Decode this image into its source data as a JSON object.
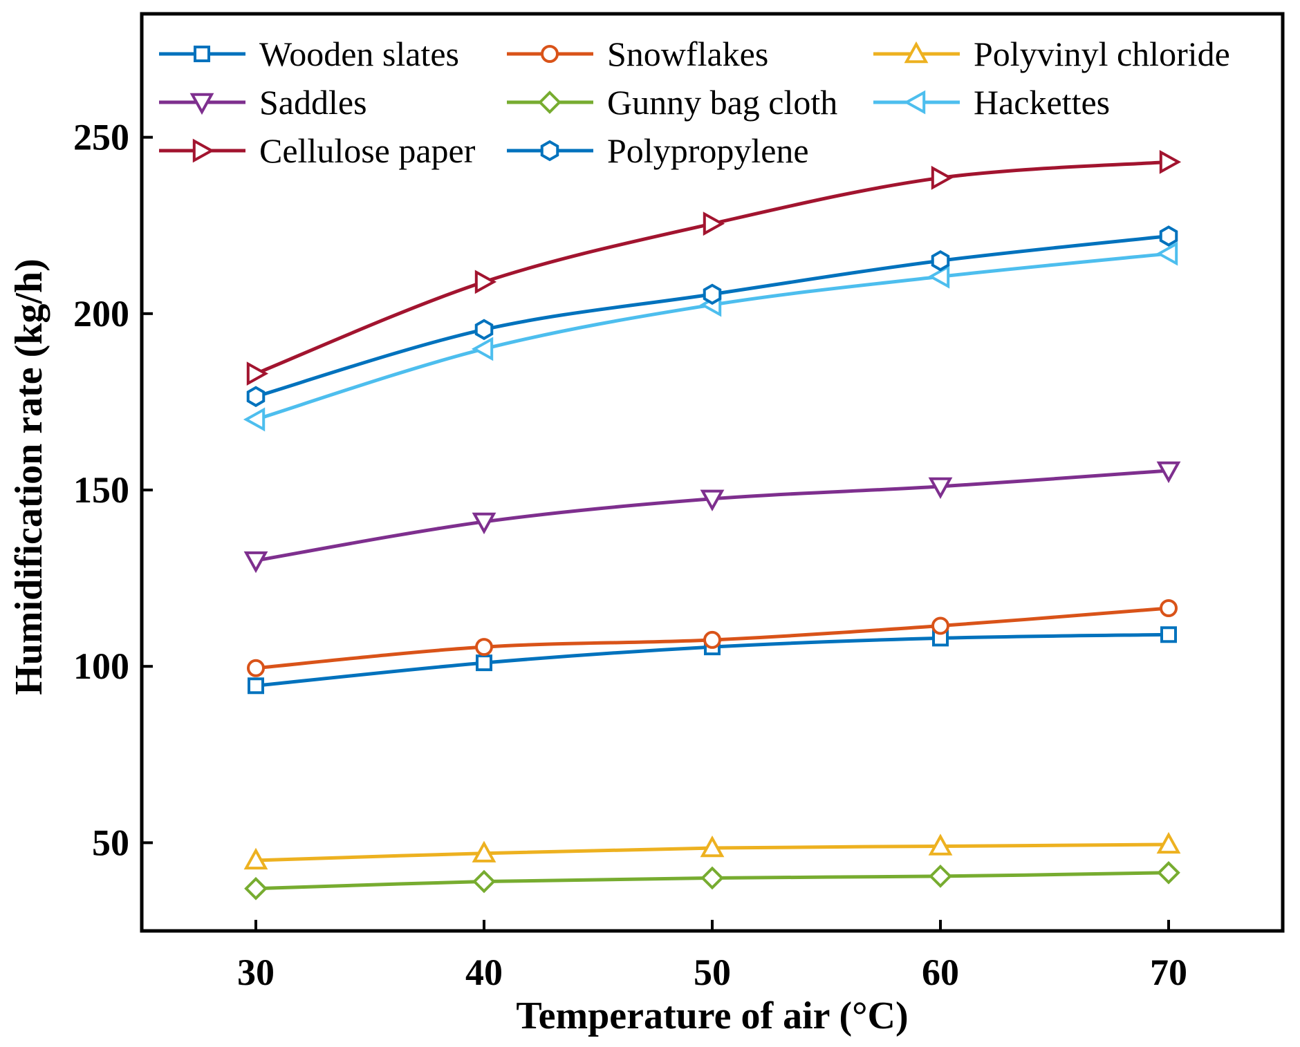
{
  "chart_data": {
    "type": "line",
    "title": "",
    "xlabel": "Temperature of air (°C)",
    "ylabel": "Humidification rate (kg/h)",
    "x": [
      30,
      40,
      50,
      60,
      70
    ],
    "xlim": [
      25,
      75
    ],
    "ylim": [
      25,
      285
    ],
    "xticks": [
      30,
      40,
      50,
      60,
      70
    ],
    "yticks": [
      50,
      100,
      150,
      200,
      250
    ],
    "grid": false,
    "legend_position": "top, 3 columns",
    "series": [
      {
        "name": "Wooden slates",
        "marker": "square",
        "color": "#0072BD",
        "values": [
          94.5,
          101,
          105.5,
          108,
          109
        ]
      },
      {
        "name": "Snowflakes",
        "marker": "circle",
        "color": "#D95319",
        "values": [
          99.5,
          105.5,
          107.5,
          111.5,
          116.5
        ]
      },
      {
        "name": "Polyvinyl chloride",
        "marker": "triangle-up",
        "color": "#EDB120",
        "values": [
          45,
          47,
          48.5,
          49,
          49.5
        ]
      },
      {
        "name": "Saddles",
        "marker": "triangle-down",
        "color": "#7E2F8E",
        "values": [
          130,
          141,
          147.5,
          151,
          155.5
        ]
      },
      {
        "name": "Gunny bag cloth",
        "marker": "diamond",
        "color": "#77AC30",
        "values": [
          37,
          39,
          40,
          40.5,
          41.5
        ]
      },
      {
        "name": "Hackettes",
        "marker": "triangle-left",
        "color": "#4DBEEE",
        "values": [
          170,
          190,
          202.5,
          210.5,
          217
        ]
      },
      {
        "name": "Cellulose paper",
        "marker": "triangle-right",
        "color": "#A2142F",
        "values": [
          183,
          209,
          225.5,
          238.5,
          243
        ]
      },
      {
        "name": "Polypropylene",
        "marker": "hexagon",
        "color": "#0072BD",
        "values": [
          176.5,
          195.5,
          205.5,
          215,
          222
        ]
      }
    ]
  }
}
